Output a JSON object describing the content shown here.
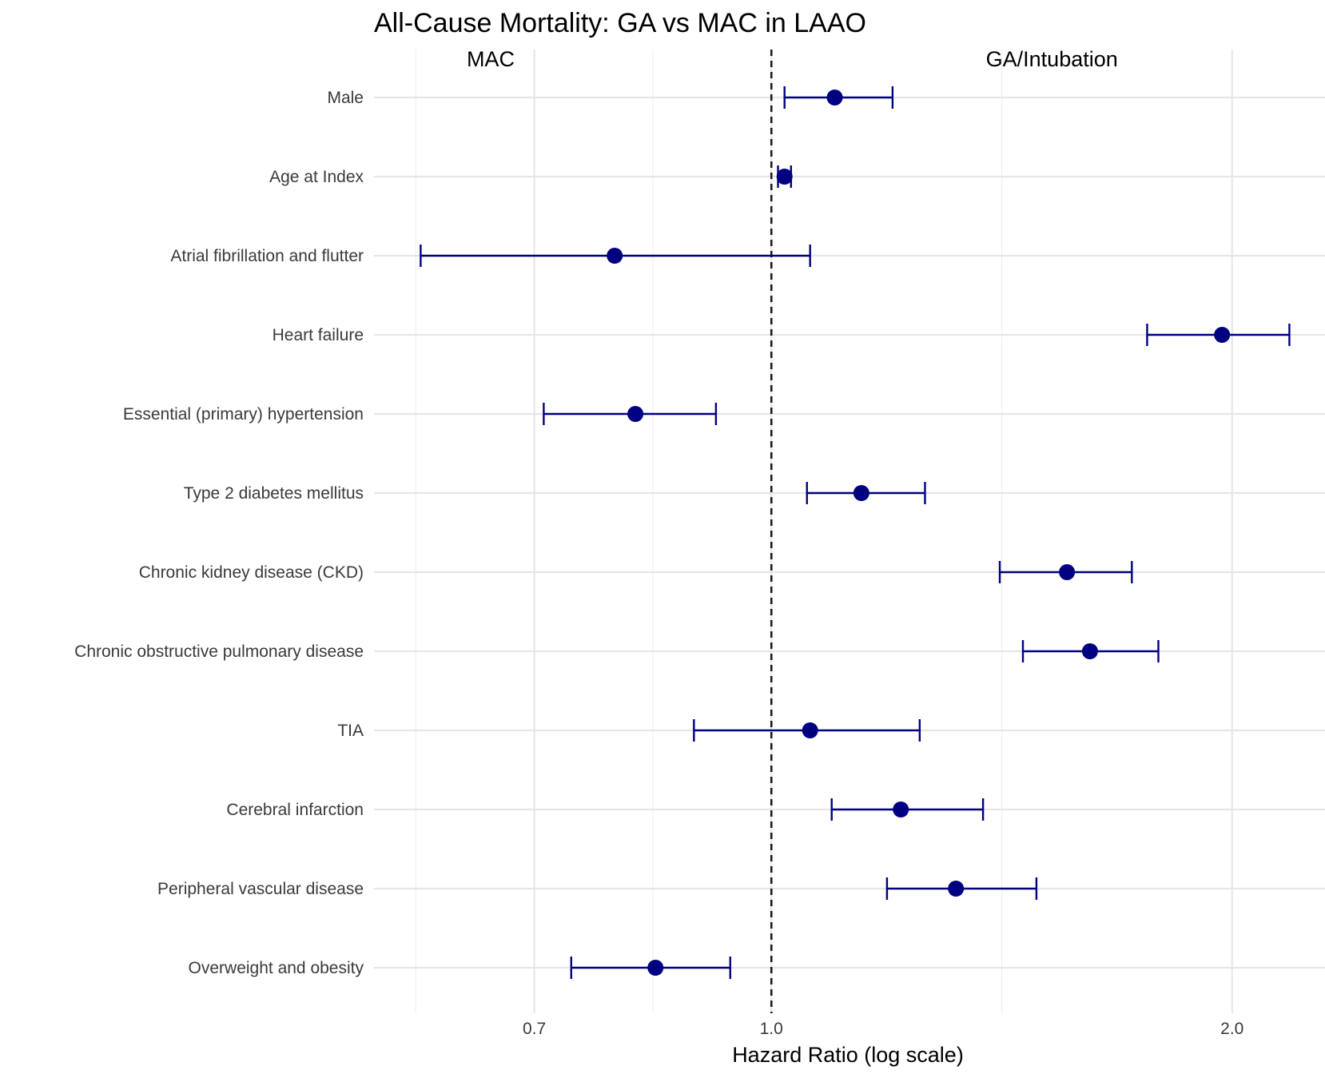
{
  "chart_data": {
    "type": "forest",
    "title": "All-Cause Mortality: GA vs MAC in LAAO",
    "xlabel": "Hazard Ratio (log scale)",
    "ylabel": "",
    "xscale": "log",
    "xlim": [
      0.55,
      2.3
    ],
    "xticks": [
      0.7,
      1.0,
      2.0
    ],
    "xtick_labels": [
      "0.7",
      "1.0",
      "2.0"
    ],
    "reference_line": 1.0,
    "region_labels": {
      "left": "MAC",
      "right": "GA/Intubation"
    },
    "point_color": "#000080",
    "rows": [
      {
        "label": "Male",
        "hr": 1.1,
        "lower": 1.02,
        "upper": 1.2
      },
      {
        "label": "Age at Index",
        "hr": 1.02,
        "lower": 1.01,
        "upper": 1.03
      },
      {
        "label": "Atrial fibrillation and flutter",
        "hr": 0.79,
        "lower": 0.59,
        "upper": 1.06
      },
      {
        "label": "Heart failure",
        "hr": 1.97,
        "lower": 1.76,
        "upper": 2.18
      },
      {
        "label": "Essential (primary) hypertension",
        "hr": 0.815,
        "lower": 0.71,
        "upper": 0.92
      },
      {
        "label": "Type 2 diabetes mellitus",
        "hr": 1.145,
        "lower": 1.055,
        "upper": 1.26
      },
      {
        "label": "Chronic kidney disease (CKD)",
        "hr": 1.56,
        "lower": 1.41,
        "upper": 1.72
      },
      {
        "label": "Chronic obstructive pulmonary disease",
        "hr": 1.615,
        "lower": 1.46,
        "upper": 1.79
      },
      {
        "label": "TIA",
        "hr": 1.06,
        "lower": 0.89,
        "upper": 1.25
      },
      {
        "label": "Cerebral infarction",
        "hr": 1.215,
        "lower": 1.095,
        "upper": 1.375
      },
      {
        "label": "Peripheral vascular disease",
        "hr": 1.32,
        "lower": 1.19,
        "upper": 1.49
      },
      {
        "label": "Overweight and obesity",
        "hr": 0.84,
        "lower": 0.74,
        "upper": 0.94
      }
    ]
  }
}
